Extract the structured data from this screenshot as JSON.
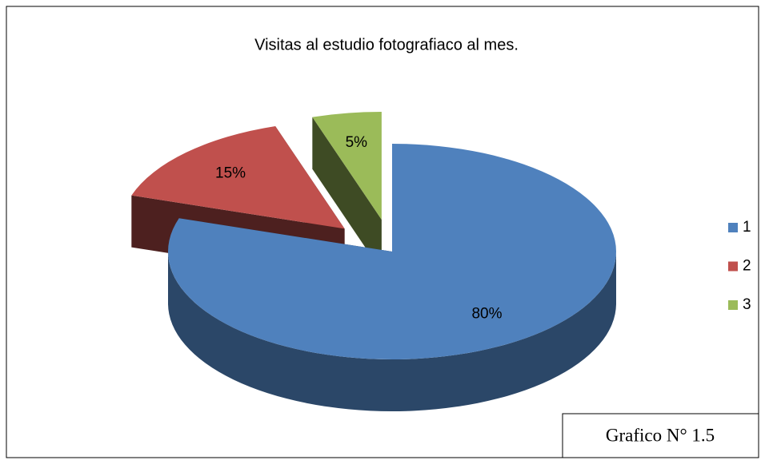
{
  "chart_data": {
    "type": "pie",
    "title": "Visitas al estudio fotografiaco al mes.",
    "categories": [
      "1",
      "2",
      "3"
    ],
    "values": [
      80,
      15,
      5
    ],
    "value_labels": [
      "80%",
      "15%",
      "5%"
    ],
    "colors": [
      "#4f81bd",
      "#c0504d",
      "#9bbb59"
    ],
    "legend": "right",
    "annotation": "Grafico N° 1.5"
  }
}
